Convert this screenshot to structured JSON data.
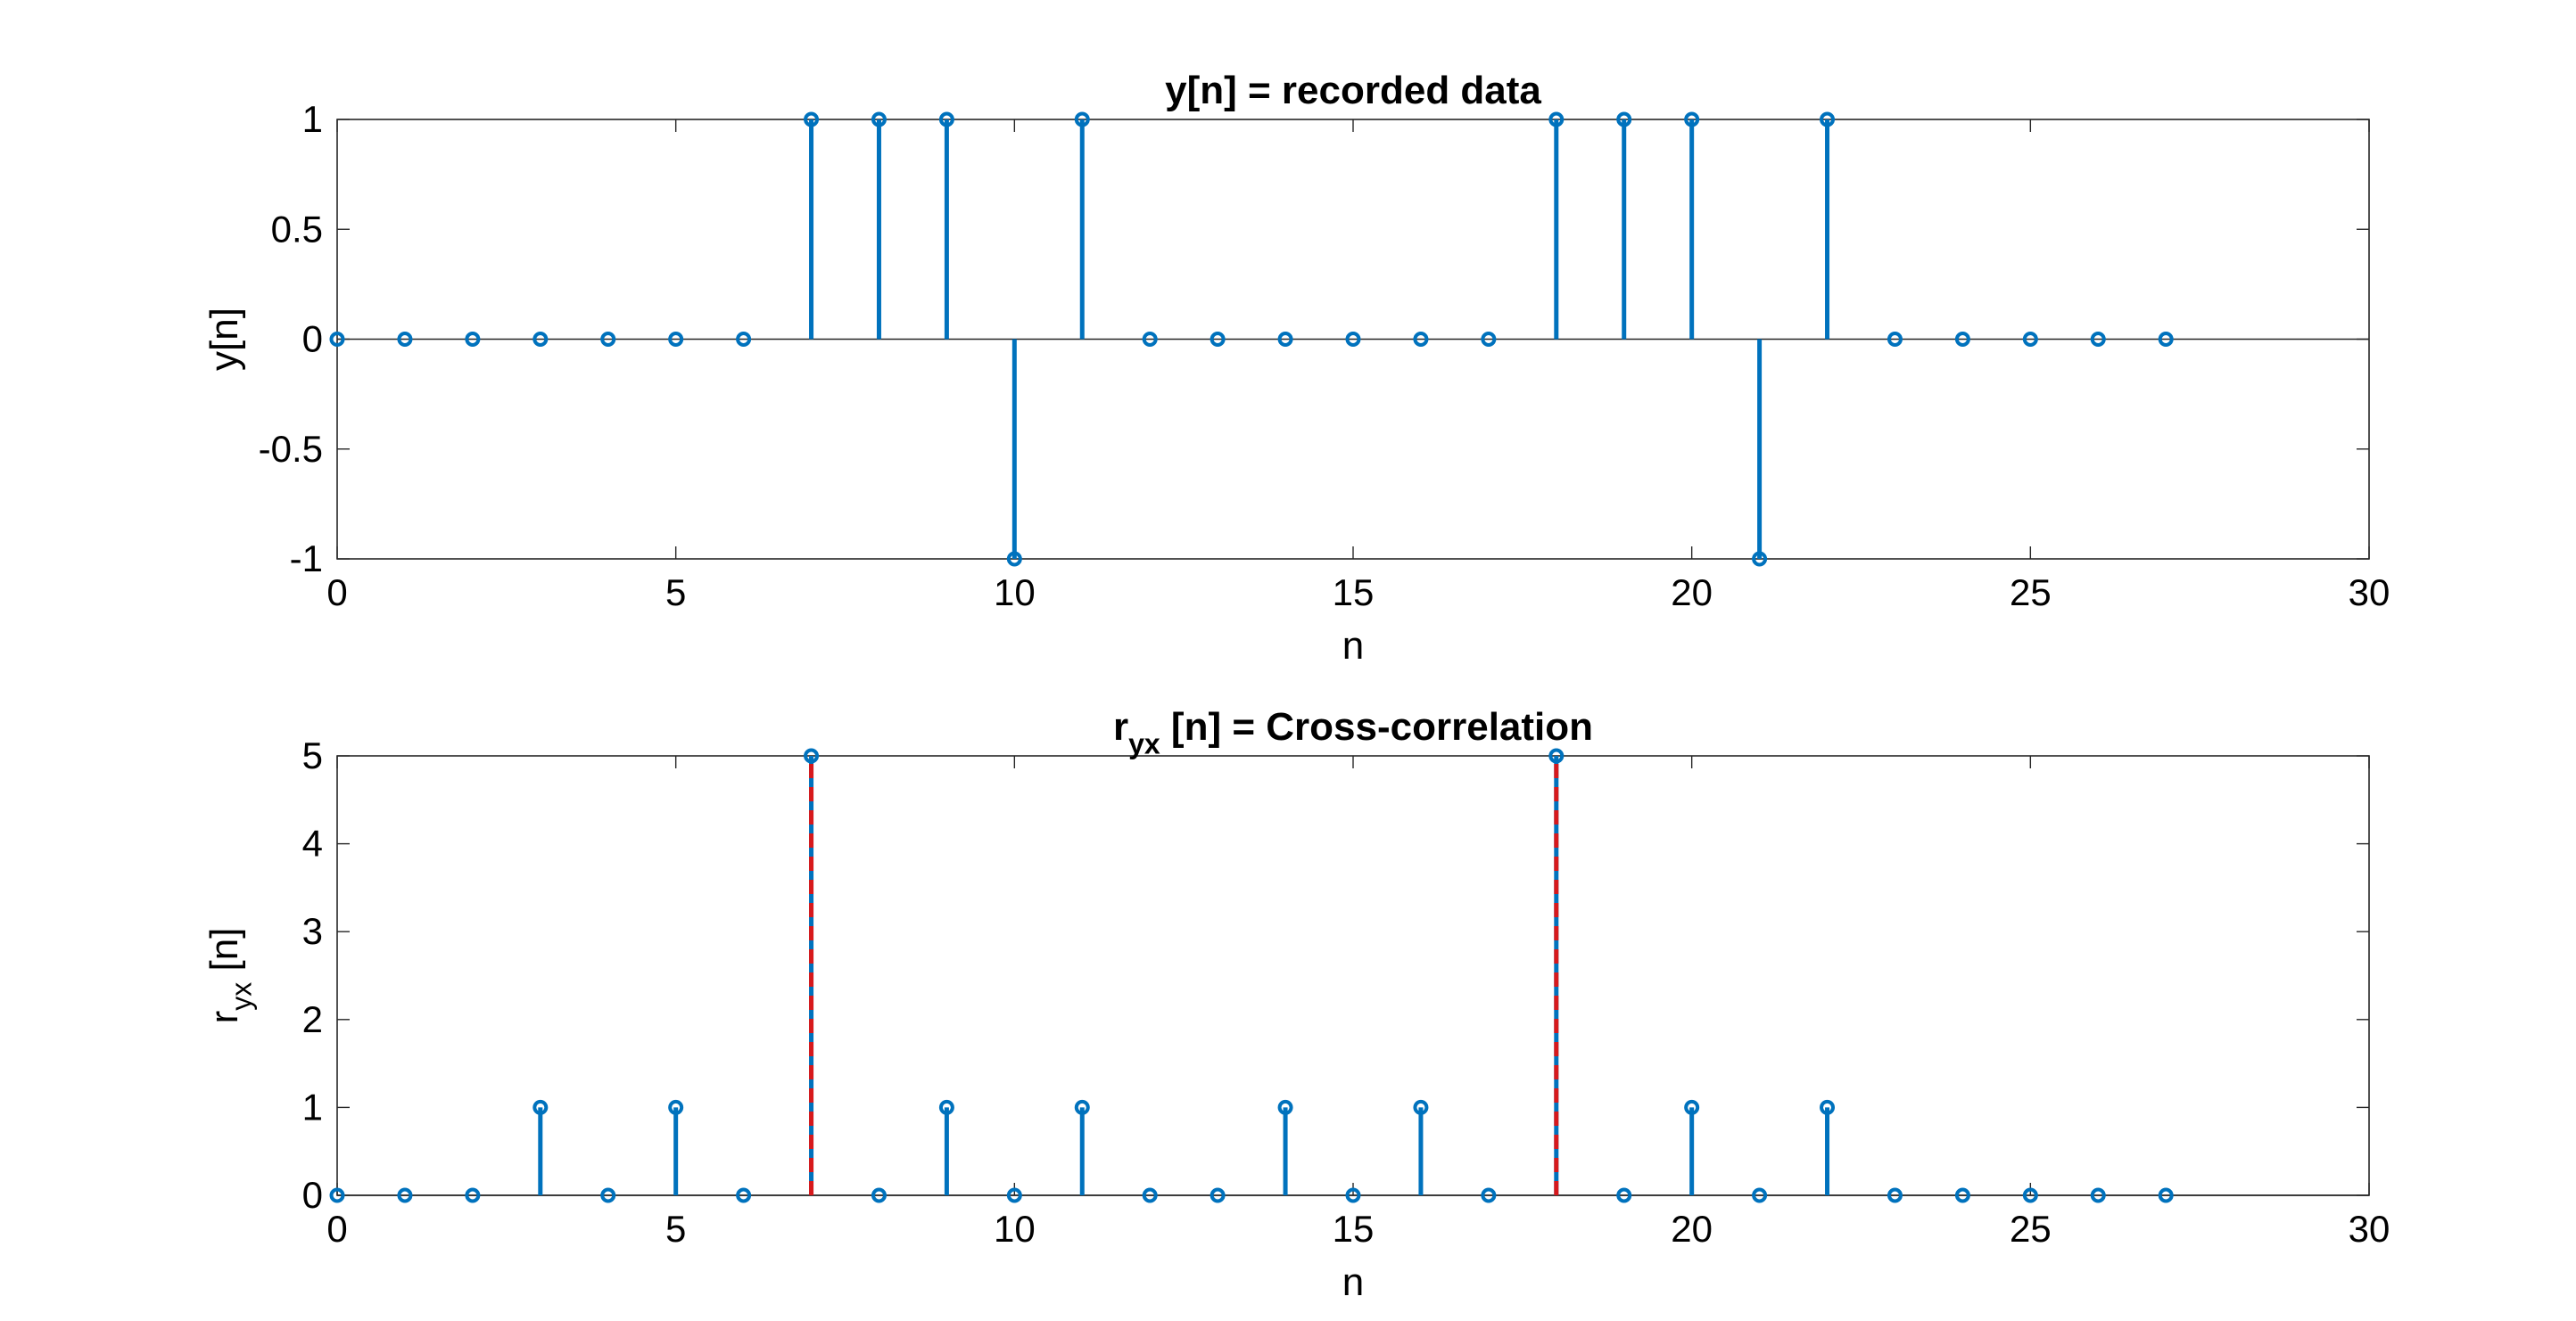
{
  "chart_data": [
    {
      "type": "stem",
      "title": "y[n] = recorded data",
      "xlabel": "n",
      "ylabel": "y[n]",
      "xlim": [
        0,
        30
      ],
      "ylim": [
        -1,
        1
      ],
      "xticks": [
        "0",
        "5",
        "10",
        "15",
        "20",
        "25",
        "30"
      ],
      "yticks": [
        "-1",
        "-0.5",
        "0",
        "0.5",
        "1"
      ],
      "grid": false,
      "series": [
        {
          "color": "#0072BD",
          "x": [
            0,
            1,
            2,
            3,
            4,
            5,
            6,
            7,
            8,
            9,
            10,
            11,
            12,
            13,
            14,
            15,
            16,
            17,
            18,
            19,
            20,
            21,
            22,
            23,
            24,
            25,
            26,
            27
          ],
          "values": [
            0,
            0,
            0,
            0,
            0,
            0,
            0,
            1,
            1,
            1,
            -1,
            1,
            0,
            0,
            0,
            0,
            0,
            0,
            1,
            1,
            1,
            -1,
            1,
            0,
            0,
            0,
            0,
            0
          ]
        }
      ]
    },
    {
      "type": "stem",
      "title": {
        "main": "r",
        "sub": "yx",
        "rest": " [n] = Cross-correlation"
      },
      "xlabel": "n",
      "ylabel": {
        "main": "r",
        "sub": "yx",
        "rest": " [n]"
      },
      "xlim": [
        0,
        30
      ],
      "ylim": [
        0,
        5
      ],
      "xticks": [
        "0",
        "5",
        "10",
        "15",
        "20",
        "25",
        "30"
      ],
      "yticks": [
        "0",
        "1",
        "2",
        "3",
        "4",
        "5"
      ],
      "grid": false,
      "series": [
        {
          "color": "#0072BD",
          "x": [
            0,
            1,
            2,
            3,
            4,
            5,
            6,
            7,
            8,
            9,
            10,
            11,
            12,
            13,
            14,
            15,
            16,
            17,
            18,
            19,
            20,
            21,
            22,
            23,
            24,
            25,
            26,
            27
          ],
          "values": [
            0,
            0,
            0,
            1,
            0,
            1,
            0,
            5,
            0,
            1,
            0,
            1,
            0,
            0,
            1,
            0,
            1,
            0,
            5,
            0,
            1,
            0,
            1,
            0,
            0,
            0,
            0,
            0
          ]
        }
      ],
      "highlight": {
        "color": "#D7191C",
        "style": "dashed",
        "x": [
          7,
          18
        ],
        "values": [
          5,
          5
        ]
      }
    }
  ]
}
